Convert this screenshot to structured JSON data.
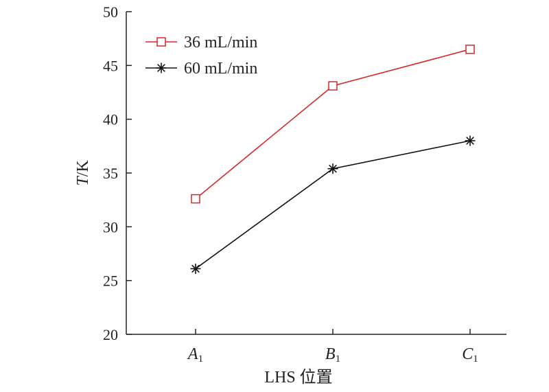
{
  "chart_data": {
    "type": "line",
    "categories": [
      {
        "letter": "A",
        "sub": "1"
      },
      {
        "letter": "B",
        "sub": "1"
      },
      {
        "letter": "C",
        "sub": "1"
      }
    ],
    "series": [
      {
        "name": "36 mL/min",
        "values": [
          32.6,
          43.1,
          46.5
        ],
        "color": "#d62728",
        "marker": "square"
      },
      {
        "name": "60 mL/min",
        "values": [
          26.1,
          35.4,
          38.0
        ],
        "color": "#111111",
        "marker": "asterisk"
      }
    ],
    "xlabel": "LHS 位置",
    "ylabel": {
      "main": "T",
      "unit": "/K"
    },
    "ylim": [
      20,
      50
    ],
    "yticks": [
      "20",
      "25",
      "30",
      "35",
      "40",
      "45",
      "50"
    ],
    "grid": false,
    "legend_position": "top-left"
  }
}
